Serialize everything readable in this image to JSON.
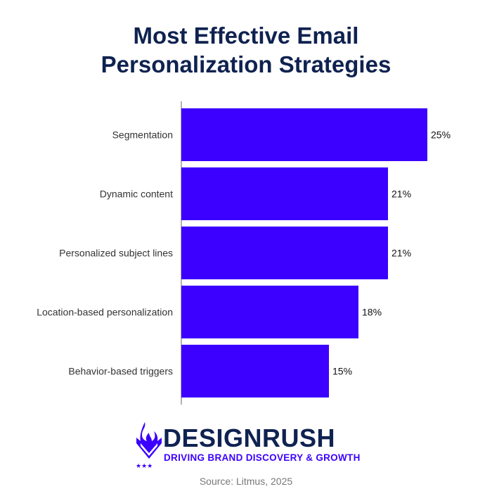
{
  "title_line1": "Most Effective Email",
  "title_line2": "Personalization Strategies",
  "chart_data": {
    "type": "bar",
    "orientation": "horizontal",
    "categories": [
      "Segmentation",
      "Dynamic content",
      "Personalized subject lines",
      "Location-based personalization",
      "Behavior-based triggers"
    ],
    "values": [
      25,
      21,
      21,
      18,
      15
    ],
    "labels": [
      "25%",
      "21%",
      "21%",
      "18%",
      "15%"
    ],
    "title": "Most Effective Email Personalization Strategies",
    "xlim": [
      0,
      25
    ],
    "bar_color": "#3b00ff",
    "grid": false
  },
  "logo": {
    "brand": "DESIGNRUSH",
    "tagline": "DRIVING BRAND DISCOVERY & GROWTH",
    "color_dark": "#0f2250",
    "color_accent": "#3b00ff",
    "icon": "flame-v-icon"
  },
  "source": "Source: Litmus, 2025"
}
